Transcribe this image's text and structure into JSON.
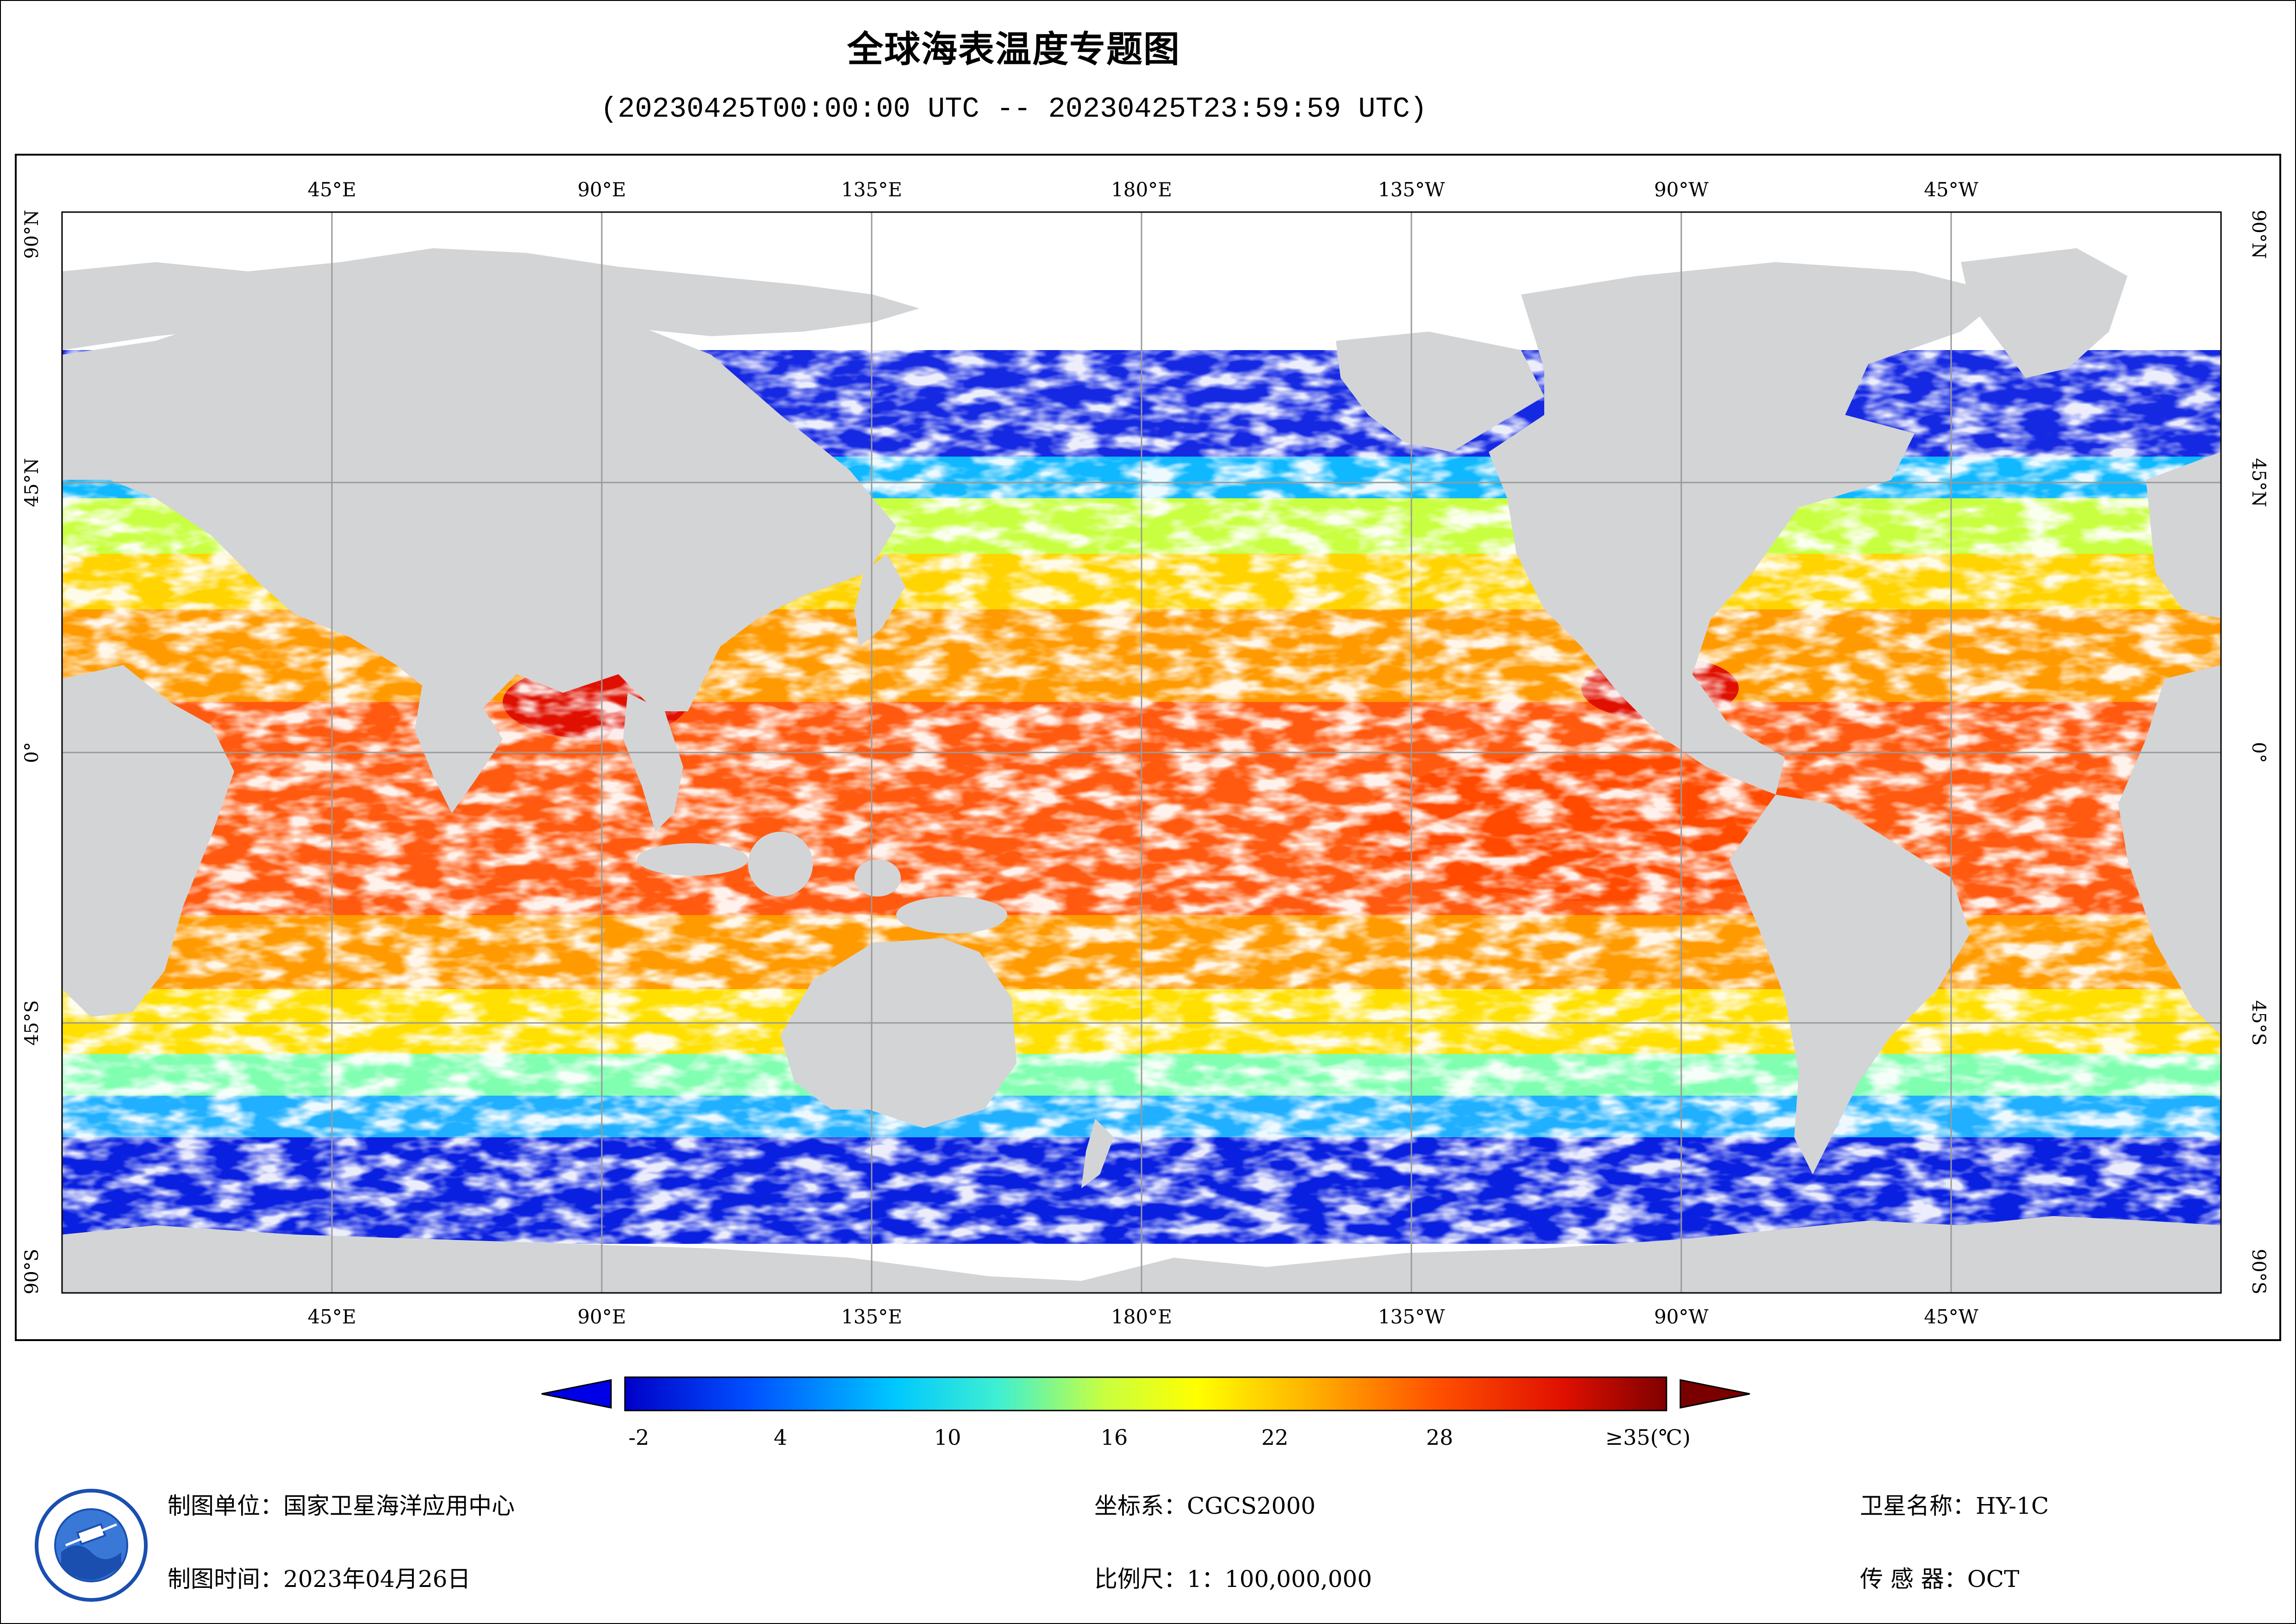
{
  "title": "全球海表温度专题图",
  "time_range": "(20230425T00:00:00 UTC -- 20230425T23:59:59 UTC)",
  "map": {
    "projection": "equirectangular, centered on 180°",
    "top_lon_labels": [
      "45°E",
      "90°E",
      "135°E",
      "180°E",
      "135°W",
      "90°W",
      "45°W"
    ],
    "bottom_lon_labels": [
      "45°E",
      "90°E",
      "135°E",
      "180°E",
      "135°W",
      "90°W",
      "45°W"
    ],
    "lat_labels": [
      "90°N",
      "45°N",
      "0°",
      "45°S",
      "90°S"
    ],
    "colors": {
      "land": "#d3d4d6",
      "no_data": "#ffffff",
      "grid": "#9a9a9a"
    }
  },
  "legend": {
    "ticks": [
      "-2",
      "4",
      "10",
      "16",
      "22",
      "28",
      "≥35(℃)"
    ],
    "min": -2,
    "max": 35,
    "unit": "℃",
    "colors": [
      "#0000c8",
      "#0050ff",
      "#00c8ff",
      "#40f0d0",
      "#c8ff40",
      "#ffff00",
      "#ffb000",
      "#ff5000",
      "#e01000",
      "#800000"
    ]
  },
  "footer": {
    "unit_label": "制图单位：国家卫星海洋应用中心",
    "date_label": "制图时间：2023年04月26日",
    "crs_label": "坐标系：CGCS2000",
    "scale_label": "比例尺：1：100,000,000",
    "satellite_label": "卫星名称：HY-1C",
    "sensor_label": "传 感 器：OCT"
  }
}
